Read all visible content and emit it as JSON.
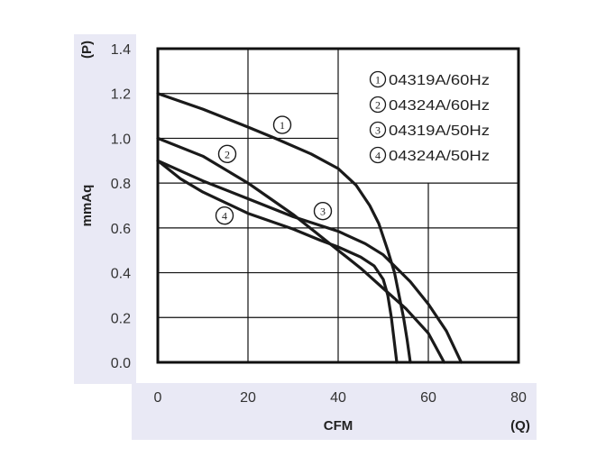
{
  "chart_data": {
    "type": "line",
    "xlabel": "CFM",
    "xlabel_symbol": "(Q)",
    "ylabel": "mmAq",
    "ylabel_symbol": "(P)",
    "xlim": [
      0,
      80
    ],
    "ylim": [
      0,
      1.4
    ],
    "xticks": [
      "0",
      "20",
      "40",
      "60",
      "80"
    ],
    "yticks": [
      "0.0",
      "0.2",
      "0.4",
      "0.6",
      "0.8",
      "1.0",
      "1.2",
      "1.4"
    ],
    "grid": true,
    "legend_placement": "top-right",
    "series": [
      {
        "name": "04319A/60Hz",
        "marker": "1",
        "label_at": [
          27.6,
          1.06
        ],
        "points": [
          [
            0,
            1.2
          ],
          [
            10,
            1.13
          ],
          [
            20,
            1.05
          ],
          [
            26,
            1.0
          ],
          [
            34,
            0.93
          ],
          [
            40,
            0.865
          ],
          [
            44,
            0.79
          ],
          [
            47,
            0.7
          ],
          [
            49,
            0.62
          ],
          [
            51,
            0.5
          ],
          [
            52.5,
            0.4
          ],
          [
            53.5,
            0.3
          ],
          [
            54.5,
            0.2
          ],
          [
            55.3,
            0.1
          ],
          [
            56,
            0
          ]
        ]
      },
      {
        "name": "04324A/60Hz",
        "marker": "2",
        "label_at": [
          15.4,
          0.93
        ],
        "points": [
          [
            0,
            1.0
          ],
          [
            10,
            0.92
          ],
          [
            20,
            0.8
          ],
          [
            25,
            0.73
          ],
          [
            30,
            0.66
          ],
          [
            35,
            0.58
          ],
          [
            40,
            0.5
          ],
          [
            45,
            0.42
          ],
          [
            50,
            0.33
          ],
          [
            55,
            0.24
          ],
          [
            60,
            0.13
          ],
          [
            63.5,
            0
          ]
        ]
      },
      {
        "name": "04319A/50Hz",
        "marker": "3",
        "label_at": [
          36.6,
          0.675
        ],
        "points": [
          [
            0,
            0.9
          ],
          [
            10,
            0.81
          ],
          [
            20,
            0.73
          ],
          [
            30,
            0.65
          ],
          [
            40,
            0.585
          ],
          [
            46,
            0.53
          ],
          [
            50,
            0.48
          ],
          [
            53,
            0.42
          ],
          [
            56,
            0.36
          ],
          [
            60,
            0.26
          ],
          [
            64,
            0.14
          ],
          [
            67.3,
            0
          ]
        ]
      },
      {
        "name": "04324A/50Hz",
        "marker": "4",
        "label_at": [
          14.8,
          0.655
        ],
        "points": [
          [
            0,
            0.9
          ],
          [
            5,
            0.82
          ],
          [
            10,
            0.76
          ],
          [
            20,
            0.665
          ],
          [
            30,
            0.595
          ],
          [
            36,
            0.545
          ],
          [
            40,
            0.515
          ],
          [
            45,
            0.47
          ],
          [
            48,
            0.43
          ],
          [
            50,
            0.37
          ],
          [
            51,
            0.3
          ],
          [
            51.8,
            0.2
          ],
          [
            52.4,
            0.1
          ],
          [
            53,
            0
          ]
        ]
      }
    ]
  }
}
